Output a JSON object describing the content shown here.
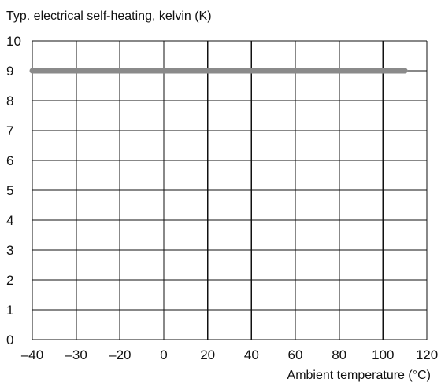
{
  "chart_data": {
    "type": "line",
    "title": "Typ. electrical self-heating, kelvin (K)",
    "xlabel": "Ambient temperature (°C)",
    "ylabel": "",
    "xlim": [
      -40,
      120
    ],
    "ylim": [
      0,
      10
    ],
    "x_ticks": [
      -40,
      -30,
      -20,
      0,
      20,
      40,
      60,
      80,
      100,
      120
    ],
    "x_tick_labels": [
      "–40",
      "–30",
      "–20",
      "0",
      "20",
      "40",
      "60",
      "80",
      "100",
      "120"
    ],
    "y_ticks": [
      0,
      1,
      2,
      3,
      4,
      5,
      6,
      7,
      8,
      9,
      10
    ],
    "y_tick_labels": [
      "0",
      "1",
      "2",
      "3",
      "4",
      "5",
      "6",
      "7",
      "8",
      "9",
      "10"
    ],
    "grid": true,
    "series": [
      {
        "x": [
          -40,
          110
        ],
        "y": [
          9,
          9
        ],
        "color": "#8a8a8a"
      }
    ],
    "colors": {
      "grid": "#111111",
      "text": "#111111",
      "series": "#8a8a8a"
    }
  }
}
